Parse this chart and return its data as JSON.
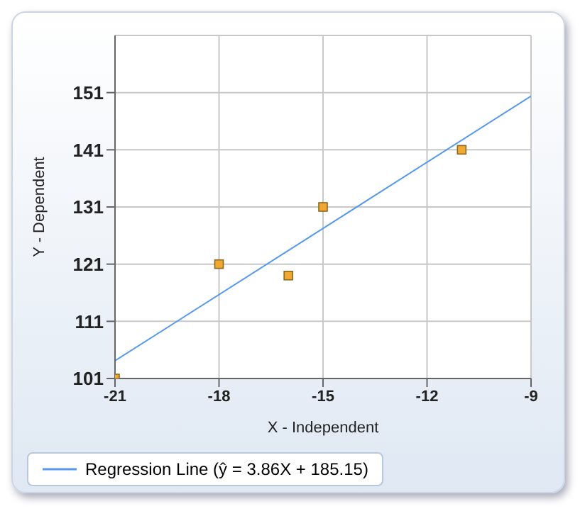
{
  "chart_data": {
    "type": "scatter",
    "xlabel": "X - Independent",
    "ylabel": "Y - Dependent",
    "xlim": [
      -21,
      -9
    ],
    "xticks": [
      -21,
      -18,
      -15,
      -12,
      -9
    ],
    "ylim": [
      101,
      161
    ],
    "yticks": [
      101,
      111,
      121,
      131,
      141,
      151
    ],
    "grid": true,
    "legend": "bottom",
    "series": [
      {
        "color": "#f0a830",
        "marker": "square",
        "x": [
          -21,
          -18,
          -16,
          -15,
          -11
        ],
        "values": [
          101,
          121,
          119,
          131,
          141
        ]
      },
      {
        "type": "line",
        "name": "Regression Line (ŷ = 3.86X + 185.15)",
        "color": "#5599ee",
        "marker": "none",
        "line_style": "solid",
        "x": [
          -21,
          -9
        ],
        "values": [
          104.1,
          150.4
        ]
      }
    ]
  }
}
